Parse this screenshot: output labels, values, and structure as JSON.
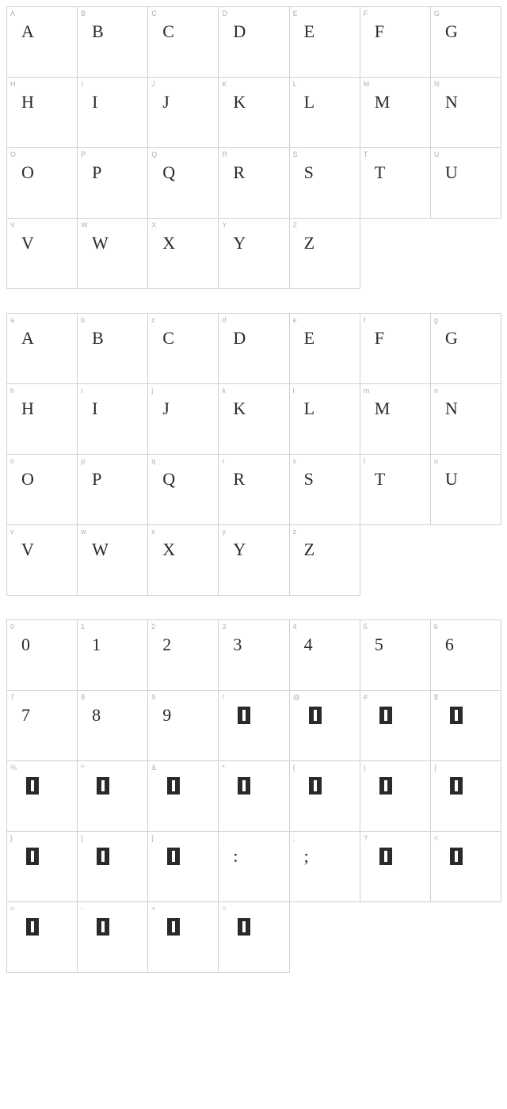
{
  "sections": [
    {
      "rows": [
        [
          {
            "label": "A",
            "glyph": "A",
            "type": "text"
          },
          {
            "label": "B",
            "glyph": "B",
            "type": "text"
          },
          {
            "label": "C",
            "glyph": "C",
            "type": "text"
          },
          {
            "label": "D",
            "glyph": "D",
            "type": "text"
          },
          {
            "label": "E",
            "glyph": "E",
            "type": "text"
          },
          {
            "label": "F",
            "glyph": "F",
            "type": "text"
          },
          {
            "label": "G",
            "glyph": "G",
            "type": "text"
          }
        ],
        [
          {
            "label": "H",
            "glyph": "H",
            "type": "text"
          },
          {
            "label": "I",
            "glyph": "I",
            "type": "text"
          },
          {
            "label": "J",
            "glyph": "J",
            "type": "text"
          },
          {
            "label": "K",
            "glyph": "K",
            "type": "text"
          },
          {
            "label": "L",
            "glyph": "L",
            "type": "text"
          },
          {
            "label": "M",
            "glyph": "M",
            "type": "text"
          },
          {
            "label": "N",
            "glyph": "N",
            "type": "text"
          }
        ],
        [
          {
            "label": "O",
            "glyph": "O",
            "type": "text"
          },
          {
            "label": "P",
            "glyph": "P",
            "type": "text"
          },
          {
            "label": "Q",
            "glyph": "Q",
            "type": "text"
          },
          {
            "label": "R",
            "glyph": "R",
            "type": "text"
          },
          {
            "label": "S",
            "glyph": "S",
            "type": "text"
          },
          {
            "label": "T",
            "glyph": "T",
            "type": "text"
          },
          {
            "label": "U",
            "glyph": "U",
            "type": "text"
          }
        ],
        [
          {
            "label": "V",
            "glyph": "V",
            "type": "text"
          },
          {
            "label": "W",
            "glyph": "W",
            "type": "text"
          },
          {
            "label": "X",
            "glyph": "X",
            "type": "text"
          },
          {
            "label": "Y",
            "glyph": "Y",
            "type": "text"
          },
          {
            "label": "Z",
            "glyph": "Z",
            "type": "text"
          },
          {
            "label": "",
            "glyph": "",
            "type": "empty"
          },
          {
            "label": "",
            "glyph": "",
            "type": "empty"
          }
        ]
      ]
    },
    {
      "rows": [
        [
          {
            "label": "a",
            "glyph": "A",
            "type": "text"
          },
          {
            "label": "b",
            "glyph": "B",
            "type": "text"
          },
          {
            "label": "c",
            "glyph": "C",
            "type": "text"
          },
          {
            "label": "d",
            "glyph": "D",
            "type": "text"
          },
          {
            "label": "e",
            "glyph": "E",
            "type": "text"
          },
          {
            "label": "f",
            "glyph": "F",
            "type": "text"
          },
          {
            "label": "g",
            "glyph": "G",
            "type": "text"
          }
        ],
        [
          {
            "label": "h",
            "glyph": "H",
            "type": "text"
          },
          {
            "label": "i",
            "glyph": "I",
            "type": "text"
          },
          {
            "label": "j",
            "glyph": "J",
            "type": "text"
          },
          {
            "label": "k",
            "glyph": "K",
            "type": "text"
          },
          {
            "label": "l",
            "glyph": "L",
            "type": "text"
          },
          {
            "label": "m",
            "glyph": "M",
            "type": "text"
          },
          {
            "label": "n",
            "glyph": "N",
            "type": "text"
          }
        ],
        [
          {
            "label": "o",
            "glyph": "O",
            "type": "text"
          },
          {
            "label": "p",
            "glyph": "P",
            "type": "text"
          },
          {
            "label": "q",
            "glyph": "Q",
            "type": "text"
          },
          {
            "label": "r",
            "glyph": "R",
            "type": "text"
          },
          {
            "label": "s",
            "glyph": "S",
            "type": "text"
          },
          {
            "label": "t",
            "glyph": "T",
            "type": "text"
          },
          {
            "label": "u",
            "glyph": "U",
            "type": "text"
          }
        ],
        [
          {
            "label": "v",
            "glyph": "V",
            "type": "text"
          },
          {
            "label": "w",
            "glyph": "W",
            "type": "text"
          },
          {
            "label": "x",
            "glyph": "X",
            "type": "text"
          },
          {
            "label": "y",
            "glyph": "Y",
            "type": "text"
          },
          {
            "label": "z",
            "glyph": "Z",
            "type": "text"
          },
          {
            "label": "",
            "glyph": "",
            "type": "empty"
          },
          {
            "label": "",
            "glyph": "",
            "type": "empty"
          }
        ]
      ]
    },
    {
      "rows": [
        [
          {
            "label": "0",
            "glyph": "0",
            "type": "text"
          },
          {
            "label": "1",
            "glyph": "1",
            "type": "text"
          },
          {
            "label": "2",
            "glyph": "2",
            "type": "text"
          },
          {
            "label": "3",
            "glyph": "3",
            "type": "text"
          },
          {
            "label": "4",
            "glyph": "4",
            "type": "text"
          },
          {
            "label": "5",
            "glyph": "5",
            "type": "text"
          },
          {
            "label": "6",
            "glyph": "6",
            "type": "text"
          }
        ],
        [
          {
            "label": "7",
            "glyph": "7",
            "type": "text"
          },
          {
            "label": "8",
            "glyph": "8",
            "type": "text"
          },
          {
            "label": "9",
            "glyph": "9",
            "type": "text"
          },
          {
            "label": "!",
            "glyph": "",
            "type": "block"
          },
          {
            "label": "@",
            "glyph": "",
            "type": "block"
          },
          {
            "label": "#",
            "glyph": "",
            "type": "block"
          },
          {
            "label": "$",
            "glyph": "",
            "type": "block"
          }
        ],
        [
          {
            "label": "%",
            "glyph": "",
            "type": "block"
          },
          {
            "label": "^",
            "glyph": "",
            "type": "block"
          },
          {
            "label": "&",
            "glyph": "",
            "type": "block"
          },
          {
            "label": "*",
            "glyph": "",
            "type": "block"
          },
          {
            "label": "(",
            "glyph": "",
            "type": "block"
          },
          {
            "label": ")",
            "glyph": "",
            "type": "block"
          },
          {
            "label": "{",
            "glyph": "",
            "type": "block"
          }
        ],
        [
          {
            "label": "}",
            "glyph": "",
            "type": "block"
          },
          {
            "label": "[",
            "glyph": "",
            "type": "block"
          },
          {
            "label": "]",
            "glyph": "",
            "type": "block"
          },
          {
            "label": ":",
            "glyph": ":",
            "type": "text"
          },
          {
            "label": ";",
            "glyph": ";",
            "type": "text"
          },
          {
            "label": "?",
            "glyph": "",
            "type": "block"
          },
          {
            "label": "<",
            "glyph": "",
            "type": "block"
          }
        ],
        [
          {
            "label": ">",
            "glyph": "",
            "type": "block"
          },
          {
            "label": "-",
            "glyph": "",
            "type": "block"
          },
          {
            "label": "+",
            "glyph": "",
            "type": "block"
          },
          {
            "label": "=",
            "glyph": "",
            "type": "block"
          },
          {
            "label": "",
            "glyph": "",
            "type": "empty"
          },
          {
            "label": "",
            "glyph": "",
            "type": "empty"
          },
          {
            "label": "",
            "glyph": "",
            "type": "empty"
          }
        ]
      ]
    }
  ],
  "colors": {
    "border": "#d0d0d0",
    "label": "#b0b0b0",
    "glyph": "#2a2a2a",
    "background": "#ffffff"
  }
}
